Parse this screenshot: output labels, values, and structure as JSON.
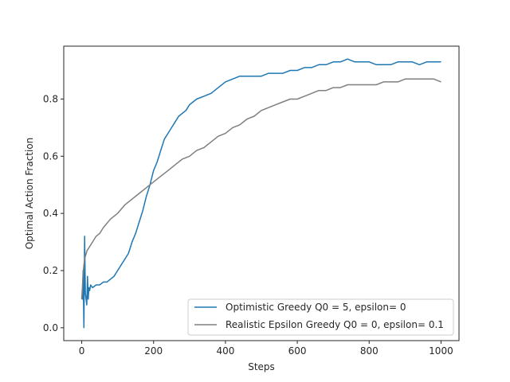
{
  "chart_data": {
    "type": "line",
    "title": "",
    "xlabel": "Steps",
    "ylabel": "Optimal Action Fraction",
    "xlim": [
      -50,
      1050
    ],
    "ylim": [
      -0.045,
      0.985
    ],
    "xticks": [
      0,
      200,
      400,
      600,
      800,
      1000
    ],
    "yticks": [
      0.0,
      0.2,
      0.4,
      0.6,
      0.8
    ],
    "ytick_labels": [
      "0.0",
      "0.2",
      "0.4",
      "0.6",
      "0.8"
    ],
    "grid": false,
    "legend_position": "lower-right",
    "series": [
      {
        "name": "Optimistic Greedy Q0 = 5, epsilon= 0",
        "color": "#1f77b4",
        "x": [
          0,
          2,
          4,
          6,
          8,
          10,
          12,
          14,
          16,
          18,
          20,
          22,
          25,
          30,
          40,
          50,
          60,
          70,
          80,
          90,
          100,
          110,
          120,
          130,
          140,
          150,
          160,
          170,
          180,
          190,
          200,
          210,
          220,
          230,
          240,
          250,
          260,
          270,
          280,
          290,
          300,
          320,
          340,
          360,
          380,
          400,
          420,
          440,
          460,
          480,
          500,
          520,
          540,
          560,
          580,
          600,
          620,
          640,
          660,
          680,
          700,
          720,
          740,
          760,
          780,
          800,
          820,
          840,
          860,
          880,
          900,
          920,
          940,
          960,
          980,
          1000
        ],
        "y": [
          0.11,
          0.1,
          0.2,
          0.0,
          0.32,
          0.12,
          0.1,
          0.08,
          0.18,
          0.1,
          0.14,
          0.13,
          0.15,
          0.14,
          0.15,
          0.15,
          0.16,
          0.16,
          0.17,
          0.18,
          0.2,
          0.22,
          0.24,
          0.26,
          0.3,
          0.33,
          0.37,
          0.41,
          0.46,
          0.5,
          0.55,
          0.58,
          0.62,
          0.66,
          0.68,
          0.7,
          0.72,
          0.74,
          0.75,
          0.76,
          0.78,
          0.8,
          0.81,
          0.82,
          0.84,
          0.86,
          0.87,
          0.88,
          0.88,
          0.88,
          0.88,
          0.89,
          0.89,
          0.89,
          0.9,
          0.9,
          0.91,
          0.91,
          0.92,
          0.92,
          0.93,
          0.93,
          0.94,
          0.93,
          0.93,
          0.93,
          0.92,
          0.92,
          0.92,
          0.93,
          0.93,
          0.93,
          0.92,
          0.93,
          0.93,
          0.93
        ]
      },
      {
        "name": "Realistic Epsilon Greedy Q0 = 0, epsilon= 0.1",
        "color": "#7f7f7f",
        "x": [
          0,
          2,
          4,
          6,
          8,
          10,
          15,
          20,
          30,
          40,
          50,
          60,
          80,
          100,
          120,
          140,
          160,
          180,
          200,
          220,
          240,
          260,
          280,
          300,
          320,
          340,
          360,
          380,
          400,
          420,
          440,
          460,
          480,
          500,
          520,
          540,
          560,
          580,
          600,
          620,
          640,
          660,
          680,
          700,
          720,
          740,
          760,
          780,
          800,
          820,
          840,
          860,
          880,
          900,
          920,
          940,
          960,
          980,
          1000
        ],
        "y": [
          0.1,
          0.14,
          0.19,
          0.22,
          0.24,
          0.25,
          0.27,
          0.28,
          0.3,
          0.32,
          0.33,
          0.35,
          0.38,
          0.4,
          0.43,
          0.45,
          0.47,
          0.49,
          0.51,
          0.53,
          0.55,
          0.57,
          0.59,
          0.6,
          0.62,
          0.63,
          0.65,
          0.67,
          0.68,
          0.7,
          0.71,
          0.73,
          0.74,
          0.76,
          0.77,
          0.78,
          0.79,
          0.8,
          0.8,
          0.81,
          0.82,
          0.83,
          0.83,
          0.84,
          0.84,
          0.85,
          0.85,
          0.85,
          0.85,
          0.85,
          0.86,
          0.86,
          0.86,
          0.87,
          0.87,
          0.87,
          0.87,
          0.87,
          0.86
        ]
      }
    ]
  }
}
